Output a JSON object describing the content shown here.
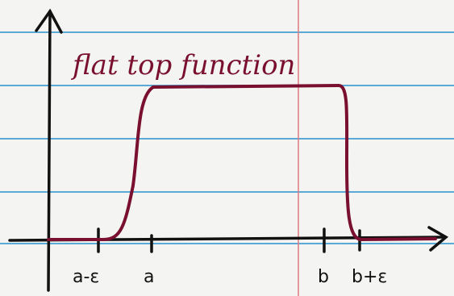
{
  "title": "flat top function",
  "x_labels": [
    "a-ε",
    "a",
    "b",
    "b+ε"
  ]
}
